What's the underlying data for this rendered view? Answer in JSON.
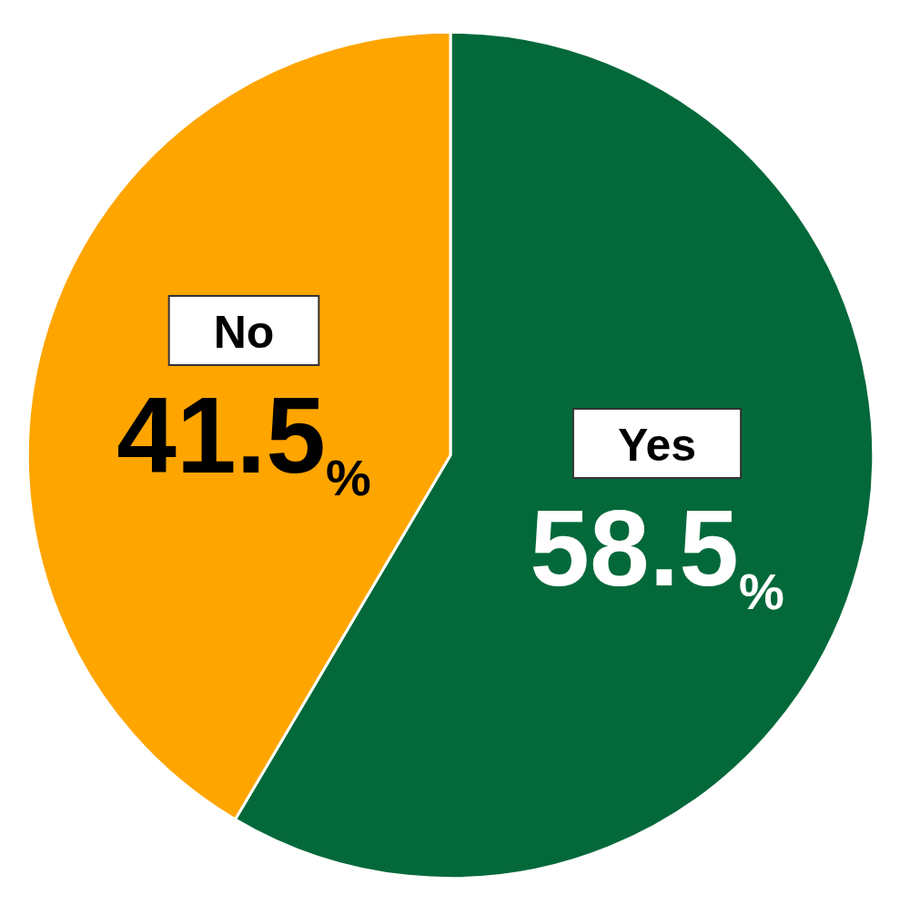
{
  "chart_data": {
    "type": "pie",
    "categories": [
      "Yes",
      "No"
    ],
    "values": [
      58.5,
      41.5
    ],
    "value_labels": [
      "58.5%",
      "41.5%"
    ],
    "colors": [
      "#03693a",
      "#ffa500"
    ],
    "data_labels": true
  }
}
